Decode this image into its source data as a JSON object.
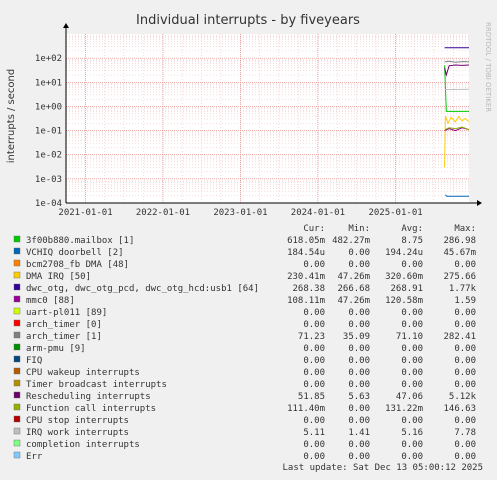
{
  "chart_data": {
    "type": "line",
    "title": "Individual interrupts - by fiveyears",
    "ylabel": "interrupts / second",
    "watermark": "RRDTOOL / TOBI OETIKER",
    "y_scale": "log",
    "ylim": [
      0.0001,
      1000
    ],
    "y_ticks": [
      {
        "value": 100,
        "label": "1e+02"
      },
      {
        "value": 10,
        "label": "1e+01"
      },
      {
        "value": 1,
        "label": "1e+00"
      },
      {
        "value": 0.1,
        "label": "1e-01"
      },
      {
        "value": 0.01,
        "label": "1e-02"
      },
      {
        "value": 0.001,
        "label": "1e-03"
      },
      {
        "value": 0.0001,
        "label": "1e-04"
      }
    ],
    "xlim": [
      "2020-10-01",
      "2025-12-13"
    ],
    "x_ticks": [
      "2021-01-01",
      "2022-01-01",
      "2023-01-01",
      "2024-01-01",
      "2025-01-01"
    ],
    "grid": true,
    "legend_headers": [
      "Cur:",
      "Min:",
      "Avg:",
      "Max:"
    ],
    "series": [
      {
        "name": "3f00b880.mailbox [1]",
        "color": "#00cc00",
        "cur": "618.05m",
        "min": "482.27m",
        "avg": "8.75",
        "max": "286.98",
        "points": [
          [
            "2025-08-20",
            50
          ],
          [
            "2025-08-28",
            0.62
          ],
          [
            "2025-12-13",
            0.62
          ]
        ]
      },
      {
        "name": "VCHIQ doorbell [2]",
        "color": "#0066b3",
        "cur": "184.54u",
        "min": "0.00",
        "avg": "194.24u",
        "max": "45.67m",
        "points": [
          [
            "2025-08-24",
            0.00022
          ],
          [
            "2025-08-30",
            0.00019
          ],
          [
            "2025-12-13",
            0.00019
          ]
        ]
      },
      {
        "name": "bcm2708_fb DMA [48]",
        "color": "#ff8000",
        "cur": "0.00",
        "min": "0.00",
        "avg": "0.00",
        "max": "0.00",
        "points": []
      },
      {
        "name": "DMA IRQ [50]",
        "color": "#ffcc00",
        "cur": "230.41m",
        "min": "47.26m",
        "avg": "320.60m",
        "max": "275.66",
        "points": [
          [
            "2025-08-20",
            0.003
          ],
          [
            "2025-08-24",
            0.4
          ],
          [
            "2025-09-05",
            0.2
          ],
          [
            "2025-09-20",
            0.35
          ],
          [
            "2025-10-10",
            0.23
          ],
          [
            "2025-10-25",
            0.38
          ],
          [
            "2025-11-10",
            0.25
          ],
          [
            "2025-11-25",
            0.32
          ],
          [
            "2025-12-13",
            0.23
          ]
        ]
      },
      {
        "name": "dwc_otg, dwc_otg_pcd, dwc_otg_hcd:usb1 [64]",
        "color": "#330099",
        "cur": "268.38",
        "min": "266.68",
        "avg": "268.91",
        "max": "1.77k",
        "points": [
          [
            "2025-08-20",
            270
          ],
          [
            "2025-12-13",
            270
          ]
        ]
      },
      {
        "name": "mmc0 [88]",
        "color": "#990099",
        "cur": "108.11m",
        "min": "47.26m",
        "avg": "120.58m",
        "max": "1.59",
        "points": [
          [
            "2025-08-20",
            0.1
          ],
          [
            "2025-09-10",
            0.12
          ],
          [
            "2025-10-10",
            0.1
          ],
          [
            "2025-11-10",
            0.13
          ],
          [
            "2025-12-13",
            0.11
          ]
        ]
      },
      {
        "name": "uart-pl011 [89]",
        "color": "#ccff00",
        "cur": "0.00",
        "min": "0.00",
        "avg": "0.00",
        "max": "0.00",
        "points": []
      },
      {
        "name": "arch_timer [0]",
        "color": "#ff0000",
        "cur": "0.00",
        "min": "0.00",
        "avg": "0.00",
        "max": "0.00",
        "points": []
      },
      {
        "name": "arch_timer [1]",
        "color": "#808080",
        "cur": "71.23",
        "min": "35.09",
        "avg": "71.10",
        "max": "282.41",
        "points": [
          [
            "2025-08-20",
            70
          ],
          [
            "2025-09-10",
            75
          ],
          [
            "2025-10-10",
            68
          ],
          [
            "2025-11-10",
            72
          ],
          [
            "2025-12-13",
            71
          ]
        ]
      },
      {
        "name": "arm-pmu [9]",
        "color": "#008f00",
        "cur": "0.00",
        "min": "0.00",
        "avg": "0.00",
        "max": "0.00",
        "points": []
      },
      {
        "name": "FIQ",
        "color": "#00487d",
        "cur": "0.00",
        "min": "0.00",
        "avg": "0.00",
        "max": "0.00",
        "points": []
      },
      {
        "name": "CPU wakeup interrupts",
        "color": "#b35a00",
        "cur": "0.00",
        "min": "0.00",
        "avg": "0.00",
        "max": "0.00",
        "points": []
      },
      {
        "name": "Timer broadcast interrupts",
        "color": "#b38f00",
        "cur": "0.00",
        "min": "0.00",
        "avg": "0.00",
        "max": "0.00",
        "points": []
      },
      {
        "name": "Rescheduling interrupts",
        "color": "#6b006b",
        "cur": "51.85",
        "min": "5.63",
        "avg": "47.06",
        "max": "5.12k",
        "points": [
          [
            "2025-08-20",
            40
          ],
          [
            "2025-08-28",
            20
          ],
          [
            "2025-09-10",
            48
          ],
          [
            "2025-10-10",
            52
          ],
          [
            "2025-11-10",
            50
          ],
          [
            "2025-12-13",
            52
          ]
        ]
      },
      {
        "name": "Function call interrupts",
        "color": "#8fb300",
        "cur": "111.40m",
        "min": "0.00",
        "avg": "131.22m",
        "max": "146.63",
        "points": [
          [
            "2025-08-22",
            0.11
          ],
          [
            "2025-09-10",
            0.13
          ],
          [
            "2025-10-10",
            0.12
          ],
          [
            "2025-11-10",
            0.14
          ],
          [
            "2025-12-13",
            0.11
          ]
        ]
      },
      {
        "name": "CPU stop interrupts",
        "color": "#b30000",
        "cur": "0.00",
        "min": "0.00",
        "avg": "0.00",
        "max": "0.00",
        "points": []
      },
      {
        "name": "IRQ work interrupts",
        "color": "#bebebe",
        "cur": "5.11",
        "min": "1.41",
        "avg": "5.16",
        "max": "7.78",
        "points": [
          [
            "2025-08-20",
            5
          ],
          [
            "2025-12-13",
            5.1
          ]
        ]
      },
      {
        "name": "completion interrupts",
        "color": "#80ff80",
        "cur": "0.00",
        "min": "0.00",
        "avg": "0.00",
        "max": "0.00",
        "points": []
      },
      {
        "name": "Err",
        "color": "#80c9ff",
        "cur": "0.00",
        "min": "0.00",
        "avg": "0.00",
        "max": "0.00",
        "points": []
      }
    ],
    "last_update": "Last update: Sat Dec 13 05:00:12 2025"
  }
}
